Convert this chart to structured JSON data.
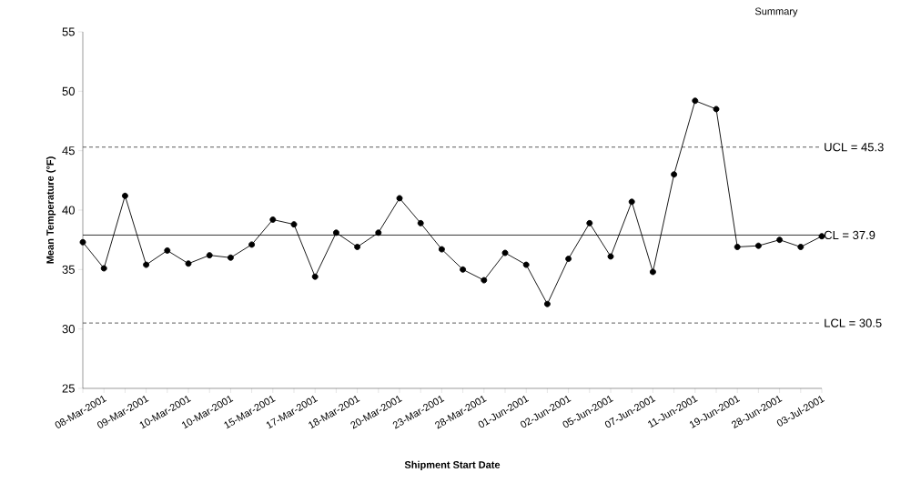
{
  "chart_data": {
    "type": "line",
    "xlabel": "Shipment Start Date",
    "ylabel": "Mean Temperature (°F)",
    "annotations": [
      "Summary"
    ],
    "categories": [
      null,
      "08-Mar-2001",
      null,
      "09-Mar-2001",
      null,
      "10-Mar-2001",
      null,
      "10-Mar-2001",
      null,
      "15-Mar-2001",
      null,
      "17-Mar-2001",
      null,
      "18-Mar-2001",
      null,
      "20-Mar-2001",
      null,
      "23-Mar-2001",
      null,
      "28-Mar-2001",
      null,
      "01-Jun-2001",
      null,
      "02-Jun-2001",
      null,
      "05-Jun-2001",
      null,
      "07-Jun-2001",
      null,
      "11-Jun-2001",
      null,
      "19-Jun-2001",
      null,
      "28-Jun-2001",
      null,
      "03-Jul-2001"
    ],
    "series": [
      {
        "color": "#000000",
        "values": [
          37.3,
          35.1,
          41.2,
          35.4,
          36.6,
          35.5,
          36.2,
          36.0,
          37.1,
          39.2,
          38.8,
          34.4,
          38.1,
          36.9,
          38.1,
          41.0,
          38.9,
          36.7,
          35.0,
          34.1,
          36.4,
          35.4,
          32.1,
          35.9,
          38.9,
          36.1,
          40.7,
          34.8,
          43.0,
          49.2,
          48.5,
          36.9,
          37.0,
          37.5,
          36.9,
          37.8
        ]
      }
    ],
    "ylim": [
      25,
      55
    ],
    "yticks": [
      25,
      30,
      35,
      40,
      45,
      50,
      55
    ],
    "ref_lines": [
      {
        "axis": "y",
        "value": 45.3,
        "label": "UCL = 45.3",
        "color": "#333333",
        "line_style": "dashed"
      },
      {
        "axis": "y",
        "value": 37.9,
        "label": "CL = 37.9",
        "color": "#000000",
        "line_style": "solid"
      },
      {
        "axis": "y",
        "value": 30.5,
        "label": "LCL = 30.5",
        "color": "#333333",
        "line_style": "dashed"
      }
    ],
    "grid": false,
    "marker": "circle",
    "line_style": "solid"
  }
}
